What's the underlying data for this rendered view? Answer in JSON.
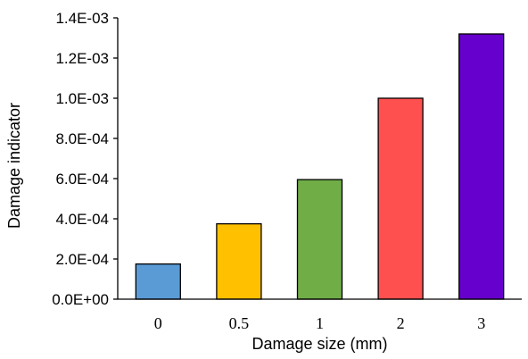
{
  "chart_data": {
    "type": "bar",
    "title": "",
    "xlabel": "Damage size (mm)",
    "ylabel": "Damage indicator",
    "categories": [
      "0",
      "0.5",
      "1",
      "2",
      "3"
    ],
    "values": [
      0.000175,
      0.000375,
      0.000595,
      0.001,
      0.00132
    ],
    "colors": [
      "#5b9bd5",
      "#ffc000",
      "#70ad47",
      "#ff5050",
      "#6600cc"
    ],
    "ylim": [
      0,
      0.0014
    ],
    "yticks": [
      0,
      0.0002,
      0.0004,
      0.0006,
      0.0008,
      0.001,
      0.0012,
      0.0014
    ],
    "ytick_labels": [
      "0.0E+00",
      "2.0E-04",
      "4.0E-04",
      "6.0E-04",
      "8.0E-04",
      "1.0E-03",
      "1.2E-03",
      "1.4E-03"
    ],
    "grid": false,
    "legend": "none"
  }
}
